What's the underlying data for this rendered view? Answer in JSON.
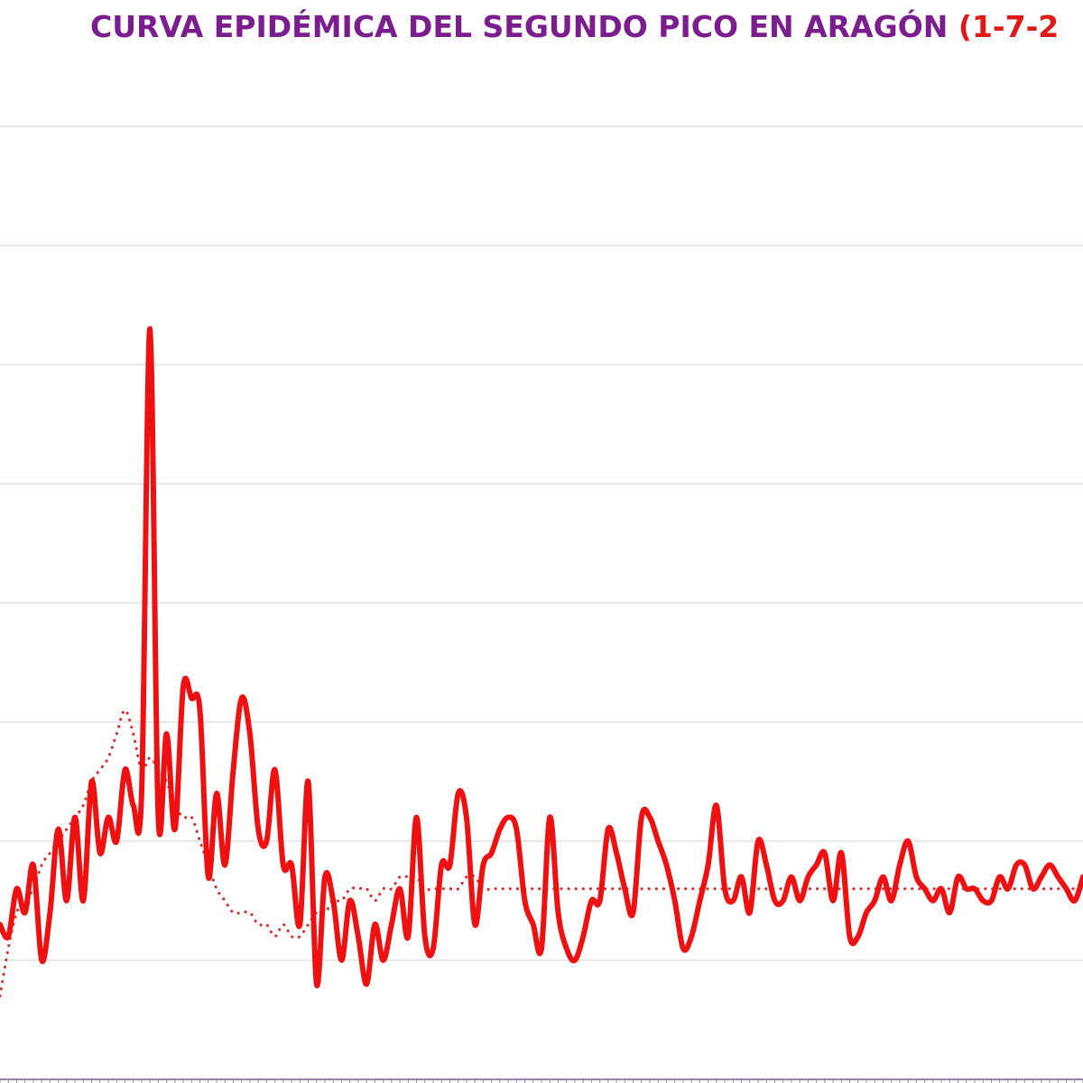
{
  "title": {
    "main": "CURVA EPIDÉMICA DEL SEGUNDO PICO EN ARAGÓN ",
    "date_range": "(1-7-2"
  },
  "colors": {
    "title": "#7b1c8f",
    "title_accent": "#e01818",
    "daily_line": "#ef1111",
    "trend_line": "#d63232",
    "grid": "#d9d9d9",
    "axis": "#9b7fae"
  },
  "chart_data": {
    "type": "line",
    "title": "CURVA EPIDÉMICA DEL SEGUNDO PICO EN ARAGÓN (1-7-2",
    "grid": true,
    "ylim": [
      0,
      8.2
    ],
    "xlim": [
      0,
      130
    ],
    "x": [
      0,
      1,
      2,
      3,
      4,
      5,
      6,
      7,
      8,
      9,
      10,
      11,
      12,
      13,
      14,
      15,
      16,
      17,
      18,
      19,
      20,
      21,
      22,
      23,
      24,
      25,
      26,
      27,
      28,
      29,
      30,
      31,
      32,
      33,
      34,
      35,
      36,
      37,
      38,
      39,
      40,
      41,
      42,
      43,
      44,
      45,
      46,
      47,
      48,
      49,
      50,
      51,
      52,
      53,
      54,
      55,
      56,
      57,
      58,
      59,
      60,
      61,
      62,
      63,
      64,
      65,
      66,
      67,
      68,
      69,
      70,
      71,
      72,
      73,
      74,
      75,
      76,
      77,
      78,
      79,
      80,
      81,
      82,
      83,
      84,
      85,
      86,
      87,
      88,
      89,
      90,
      91,
      92,
      93,
      94,
      95,
      96,
      97,
      98,
      99,
      100,
      101,
      102,
      103,
      104,
      105,
      106,
      107,
      108,
      109,
      110,
      111,
      112,
      113,
      114,
      115,
      116,
      117,
      118,
      119,
      120,
      121,
      122,
      123,
      124,
      125,
      126,
      127,
      128,
      129,
      130
    ],
    "series": [
      {
        "style": "solid",
        "values": [
          1.3,
          1.2,
          1.6,
          1.4,
          1.8,
          1.0,
          1.4,
          2.1,
          1.5,
          2.2,
          1.5,
          2.5,
          1.9,
          2.2,
          2.0,
          2.6,
          2.3,
          2.4,
          6.3,
          2.2,
          2.9,
          2.1,
          3.3,
          3.2,
          3.1,
          1.7,
          2.4,
          1.8,
          2.6,
          3.2,
          2.9,
          2.1,
          2.0,
          2.6,
          1.8,
          1.8,
          1.3,
          2.5,
          0.8,
          1.7,
          1.5,
          1.0,
          1.5,
          1.2,
          0.8,
          1.3,
          1.0,
          1.3,
          1.6,
          1.2,
          2.2,
          1.2,
          1.1,
          1.8,
          1.8,
          2.4,
          2.2,
          1.3,
          1.8,
          1.9,
          2.1,
          2.2,
          2.1,
          1.5,
          1.3,
          1.1,
          2.2,
          1.4,
          1.1,
          1.0,
          1.2,
          1.5,
          1.5,
          2.1,
          1.9,
          1.6,
          1.4,
          2.2,
          2.2,
          2.0,
          1.8,
          1.5,
          1.1,
          1.2,
          1.5,
          1.8,
          2.3,
          1.6,
          1.5,
          1.7,
          1.4,
          2.0,
          1.8,
          1.5,
          1.5,
          1.7,
          1.5,
          1.7,
          1.8,
          1.9,
          1.5,
          1.9,
          1.2,
          1.2,
          1.4,
          1.5,
          1.7,
          1.5,
          1.8,
          2.0,
          1.7,
          1.6,
          1.5,
          1.6,
          1.4,
          1.7,
          1.6,
          1.6,
          1.5,
          1.5,
          1.7,
          1.6,
          1.8,
          1.8,
          1.6,
          1.7,
          1.8,
          1.7,
          1.6,
          1.5,
          1.7
        ]
      },
      {
        "style": "dotted",
        "values": [
          0.7,
          1.1,
          1.4,
          1.5,
          1.6,
          1.8,
          1.9,
          2.0,
          2.1,
          2.2,
          2.3,
          2.5,
          2.6,
          2.7,
          2.9,
          3.1,
          2.9,
          2.6,
          2.7,
          2.6,
          2.5,
          2.3,
          2.2,
          2.2,
          2.0,
          1.8,
          1.6,
          1.5,
          1.4,
          1.4,
          1.4,
          1.3,
          1.3,
          1.2,
          1.3,
          1.2,
          1.2,
          1.3,
          1.4,
          1.4,
          1.5,
          1.5,
          1.6,
          1.6,
          1.6,
          1.5,
          1.6,
          1.6,
          1.7,
          1.7,
          1.7,
          1.6,
          1.6,
          1.6,
          1.6,
          1.6,
          1.7,
          1.7,
          1.6,
          1.6,
          1.6,
          1.6,
          1.6,
          1.6,
          1.6,
          1.6,
          1.6,
          1.6,
          1.6,
          1.6,
          1.6,
          1.6,
          1.6,
          1.6,
          1.6,
          1.6,
          1.6,
          1.6,
          1.6,
          1.6,
          1.6,
          1.6,
          1.6,
          1.6,
          1.6,
          1.6,
          1.6,
          1.6,
          1.6,
          1.6,
          1.6,
          1.6,
          1.6,
          1.6,
          1.6,
          1.6,
          1.6,
          1.6,
          1.6,
          1.6,
          1.6,
          1.6,
          1.6,
          1.6,
          1.6,
          1.6,
          1.6,
          1.6,
          1.6,
          1.6,
          1.6,
          1.6,
          1.6,
          1.6,
          1.6,
          1.6,
          1.6,
          1.6,
          1.6,
          1.6,
          1.6,
          1.6,
          1.6,
          1.6,
          1.6,
          1.6,
          1.6,
          1.6,
          1.6,
          1.6,
          1.6
        ]
      }
    ]
  }
}
